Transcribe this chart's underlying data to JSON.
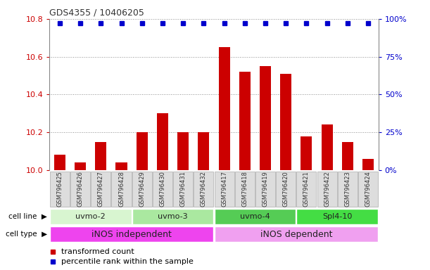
{
  "title": "GDS4355 / 10406205",
  "samples": [
    "GSM796425",
    "GSM796426",
    "GSM796427",
    "GSM796428",
    "GSM796429",
    "GSM796430",
    "GSM796431",
    "GSM796432",
    "GSM796417",
    "GSM796418",
    "GSM796419",
    "GSM796420",
    "GSM796421",
    "GSM796422",
    "GSM796423",
    "GSM796424"
  ],
  "bar_values": [
    10.08,
    10.04,
    10.15,
    10.04,
    10.2,
    10.3,
    10.2,
    10.2,
    10.65,
    10.52,
    10.55,
    10.51,
    10.18,
    10.24,
    10.15,
    10.06
  ],
  "percentile_values": [
    97,
    97,
    97,
    97,
    97,
    97,
    97,
    97,
    97,
    97,
    97,
    97,
    97,
    97,
    97,
    97
  ],
  "bar_color": "#cc0000",
  "percentile_color": "#0000cc",
  "ylim_left": [
    10.0,
    10.8
  ],
  "ylim_right": [
    0,
    100
  ],
  "yticks_left": [
    10.0,
    10.2,
    10.4,
    10.6,
    10.8
  ],
  "yticks_right": [
    0,
    25,
    50,
    75,
    100
  ],
  "ytick_labels_right": [
    "0%",
    "25%",
    "50%",
    "75%",
    "100%"
  ],
  "cell_lines": [
    {
      "label": "uvmo-2",
      "start": 0,
      "end": 3,
      "color": "#d8f5d0"
    },
    {
      "label": "uvmo-3",
      "start": 4,
      "end": 7,
      "color": "#aae8a0"
    },
    {
      "label": "uvmo-4",
      "start": 8,
      "end": 11,
      "color": "#55cc55"
    },
    {
      "label": "Spl4-10",
      "start": 12,
      "end": 15,
      "color": "#44dd44"
    }
  ],
  "cell_types": [
    {
      "label": "iNOS independent",
      "start": 0,
      "end": 7,
      "color": "#ee44ee"
    },
    {
      "label": "iNOS dependent",
      "start": 8,
      "end": 15,
      "color": "#f0a0f0"
    }
  ],
  "legend_bar_label": "transformed count",
  "legend_pct_label": "percentile rank within the sample",
  "grid_color": "#444444",
  "title_color": "#333333",
  "ylabel_left_color": "#cc0000",
  "ylabel_right_color": "#0000cc",
  "sample_box_color": "#dddddd",
  "sample_box_edge": "#aaaaaa"
}
